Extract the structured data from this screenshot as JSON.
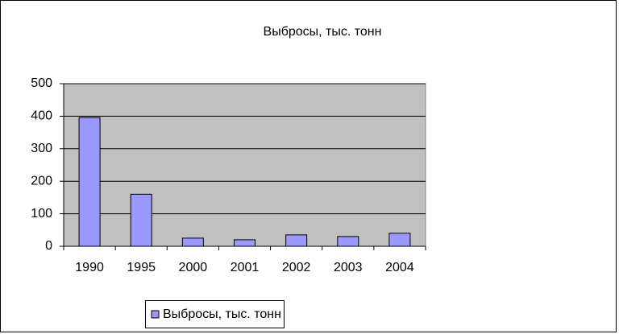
{
  "chart_data": {
    "type": "bar",
    "title": "Выбросы, тыс. тонн",
    "categories": [
      "1990",
      "1995",
      "2000",
      "2001",
      "2002",
      "2003",
      "2004"
    ],
    "series": [
      {
        "name": "Выбросы, тыс. тонн",
        "color": "#9999ff",
        "values": [
          396,
          160,
          25,
          20,
          35,
          30,
          40
        ]
      }
    ],
    "ylim": [
      0,
      500
    ],
    "yticks": [
      0,
      100,
      200,
      300,
      400,
      500
    ],
    "grid": true,
    "legend": "bottom"
  }
}
